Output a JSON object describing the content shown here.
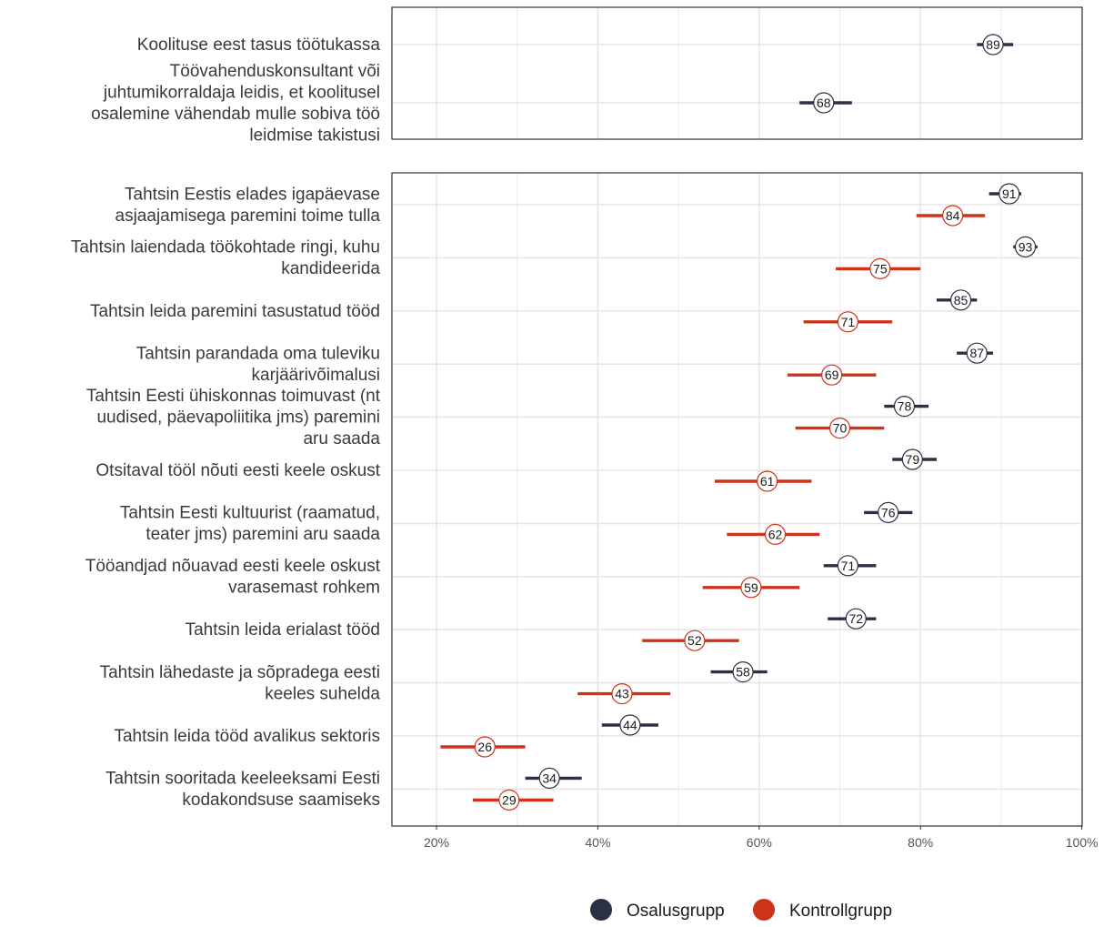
{
  "chart_data": {
    "type": "scatter",
    "subtype": "dot-with-error-bars",
    "xlim": [
      15,
      100
    ],
    "x_ticks": [
      20,
      40,
      60,
      80,
      100
    ],
    "x_tick_labels": [
      "20%",
      "40%",
      "60%",
      "80%",
      "100%"
    ],
    "grid": true,
    "legend_position": "bottom",
    "colors": {
      "Osalusgrupp": "#2b3145",
      "Kontrollgrupp": "#cc3318"
    },
    "legend": [
      {
        "name": "Osalusgrupp",
        "color": "#2b3145"
      },
      {
        "name": "Kontrollgrupp",
        "color": "#cc3318"
      }
    ],
    "panels": [
      {
        "items": [
          {
            "label": "Koolituse eest tasus töötukassa",
            "series": [
              {
                "name": "Osalusgrupp",
                "value": 89,
                "low": 87,
                "high": 91.5
              }
            ]
          },
          {
            "label": "Töövahenduskonsultant või juhtumikorraldaja leidis, et koolitusel osalemine vähendab mulle sobiva töö leidmise takistusi",
            "series": [
              {
                "name": "Osalusgrupp",
                "value": 68,
                "low": 65,
                "high": 71.5
              }
            ]
          }
        ]
      },
      {
        "items": [
          {
            "label": "Tahtsin Eestis elades igapäevase asjaajamisega paremini toime tulla",
            "series": [
              {
                "name": "Osalusgrupp",
                "value": 91,
                "low": 88.5,
                "high": 92.5
              },
              {
                "name": "Kontrollgrupp",
                "value": 84,
                "low": 79.5,
                "high": 88
              }
            ]
          },
          {
            "label": "Tahtsin laiendada töökohtade ringi, kuhu kandideerida",
            "series": [
              {
                "name": "Osalusgrupp",
                "value": 93,
                "low": 91.5,
                "high": 94.5
              },
              {
                "name": "Kontrollgrupp",
                "value": 75,
                "low": 69.5,
                "high": 80
              }
            ]
          },
          {
            "label": "Tahtsin leida paremini tasustatud tööd",
            "series": [
              {
                "name": "Osalusgrupp",
                "value": 85,
                "low": 82,
                "high": 87
              },
              {
                "name": "Kontrollgrupp",
                "value": 71,
                "low": 65.5,
                "high": 76.5
              }
            ]
          },
          {
            "label": "Tahtsin parandada oma tuleviku karjäärivõimalusi",
            "series": [
              {
                "name": "Osalusgrupp",
                "value": 87,
                "low": 84.5,
                "high": 89
              },
              {
                "name": "Kontrollgrupp",
                "value": 69,
                "low": 63.5,
                "high": 74.5
              }
            ]
          },
          {
            "label": "Tahtsin Eesti ühiskonnas toimuvast (nt uudised, päevapoliitika jms) paremini aru saada",
            "series": [
              {
                "name": "Osalusgrupp",
                "value": 78,
                "low": 75.5,
                "high": 81
              },
              {
                "name": "Kontrollgrupp",
                "value": 70,
                "low": 64.5,
                "high": 75.5
              }
            ]
          },
          {
            "label": "Otsitaval tööl nõuti eesti keele oskust",
            "series": [
              {
                "name": "Osalusgrupp",
                "value": 79,
                "low": 76.5,
                "high": 82
              },
              {
                "name": "Kontrollgrupp",
                "value": 61,
                "low": 54.5,
                "high": 66.5
              }
            ]
          },
          {
            "label": "Tahtsin Eesti kultuurist (raamatud, teater jms) paremini aru saada",
            "series": [
              {
                "name": "Osalusgrupp",
                "value": 76,
                "low": 73,
                "high": 79
              },
              {
                "name": "Kontrollgrupp",
                "value": 62,
                "low": 56,
                "high": 67.5
              }
            ]
          },
          {
            "label": "Tööandjad nõuavad eesti keele oskust varasemast rohkem",
            "series": [
              {
                "name": "Osalusgrupp",
                "value": 71,
                "low": 68,
                "high": 74.5
              },
              {
                "name": "Kontrollgrupp",
                "value": 59,
                "low": 53,
                "high": 65
              }
            ]
          },
          {
            "label": "Tahtsin leida erialast tööd",
            "series": [
              {
                "name": "Osalusgrupp",
                "value": 72,
                "low": 68.5,
                "high": 74.5
              },
              {
                "name": "Kontrollgrupp",
                "value": 52,
                "low": 45.5,
                "high": 57.5
              }
            ]
          },
          {
            "label": "Tahtsin lähedaste ja sõpradega eesti keeles suhelda",
            "series": [
              {
                "name": "Osalusgrupp",
                "value": 58,
                "low": 54,
                "high": 61
              },
              {
                "name": "Kontrollgrupp",
                "value": 43,
                "low": 37.5,
                "high": 49
              }
            ]
          },
          {
            "label": "Tahtsin leida tööd avalikus sektoris",
            "series": [
              {
                "name": "Osalusgrupp",
                "value": 44,
                "low": 40.5,
                "high": 47.5
              },
              {
                "name": "Kontrollgrupp",
                "value": 26,
                "low": 20.5,
                "high": 31
              }
            ]
          },
          {
            "label": "Tahtsin sooritada keeleeksami Eesti kodakondsuse saamiseks",
            "series": [
              {
                "name": "Osalusgrupp",
                "value": 34,
                "low": 31,
                "high": 38
              },
              {
                "name": "Kontrollgrupp",
                "value": 29,
                "low": 24.5,
                "high": 34.5
              }
            ]
          }
        ]
      }
    ]
  }
}
